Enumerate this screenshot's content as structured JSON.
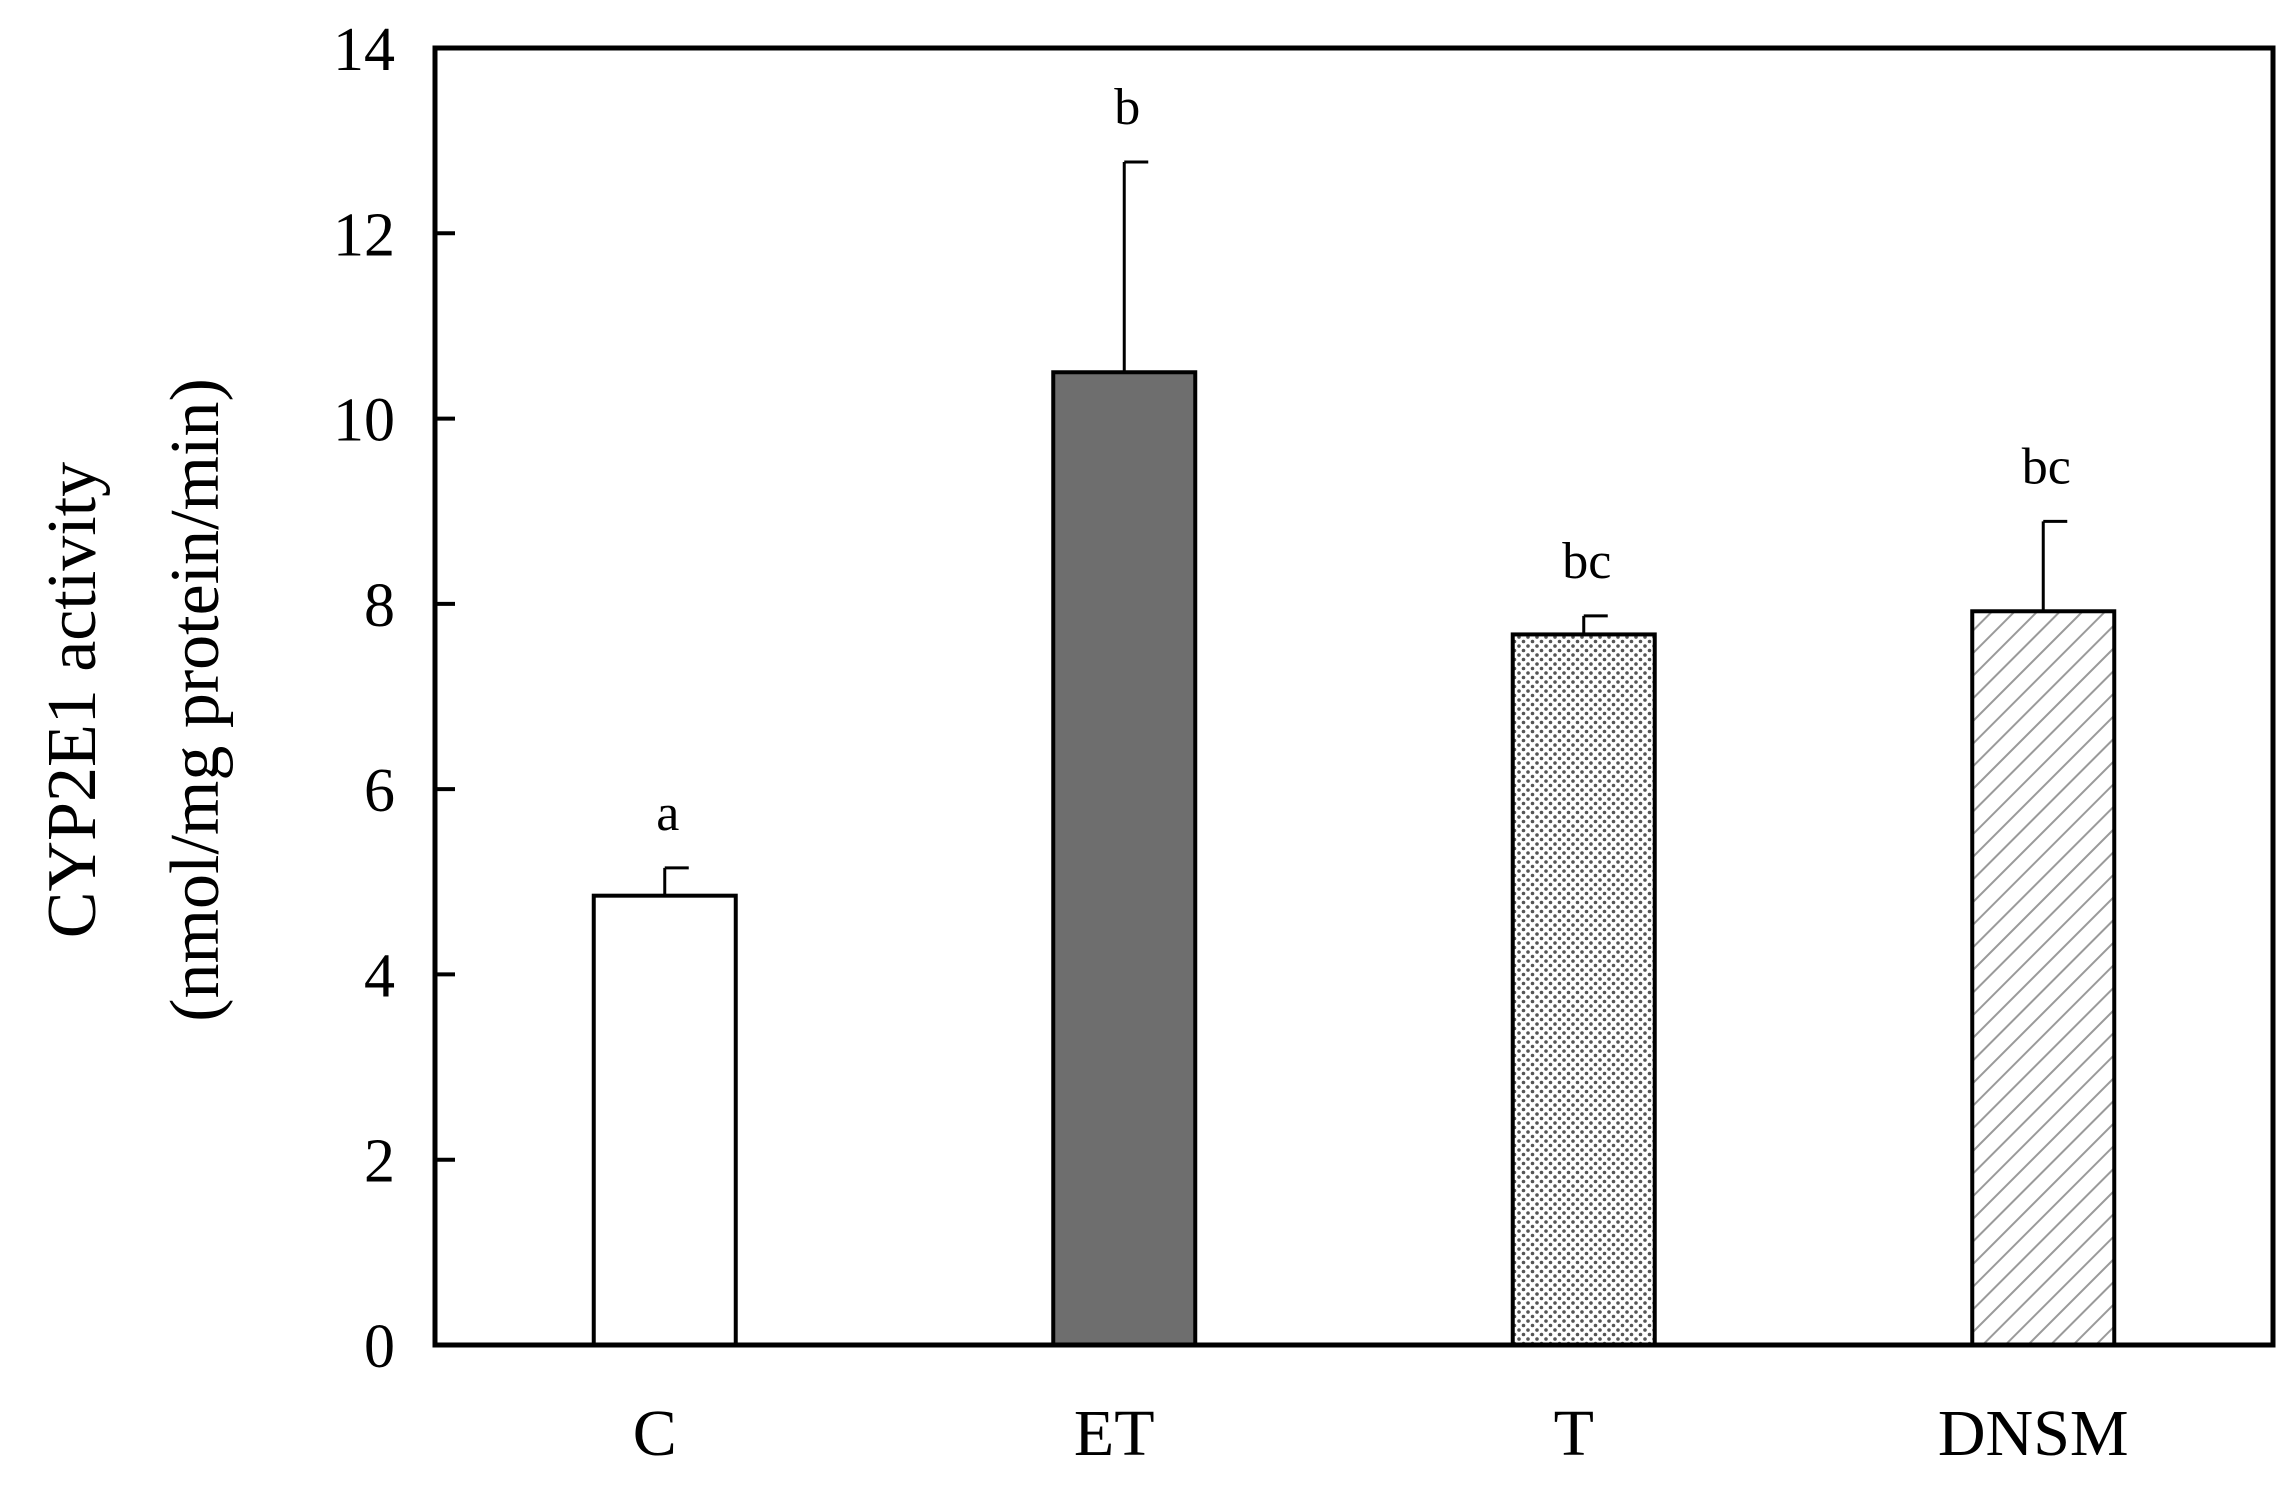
{
  "chart_data": {
    "type": "bar",
    "title": "",
    "ylabel_lines": [
      "CYP2E1 activity",
      "(nmol/mg protein/min)"
    ],
    "xlabel": "",
    "ylim": [
      0,
      14
    ],
    "y_ticks": [
      "0",
      "2",
      "4",
      "6",
      "8",
      "10",
      "12",
      "14"
    ],
    "categories": [
      "C",
      "ET",
      "T",
      "DNSM"
    ],
    "values": [
      4.85,
      10.5,
      7.67,
      7.92
    ],
    "errors": [
      0.3,
      2.27,
      0.2,
      0.97
    ],
    "significance_labels": [
      "a",
      "b",
      "bc",
      "bc"
    ],
    "bar_fills": [
      "white",
      "gray",
      "dots",
      "hatch"
    ],
    "grid": false,
    "legend": "none"
  },
  "colors": {
    "axis": "#000000",
    "bar_outline": "#000000",
    "solid_gray": "#6e6e6e",
    "dot_pattern": "#555555",
    "hatch_pattern": "#9a9a9a"
  }
}
